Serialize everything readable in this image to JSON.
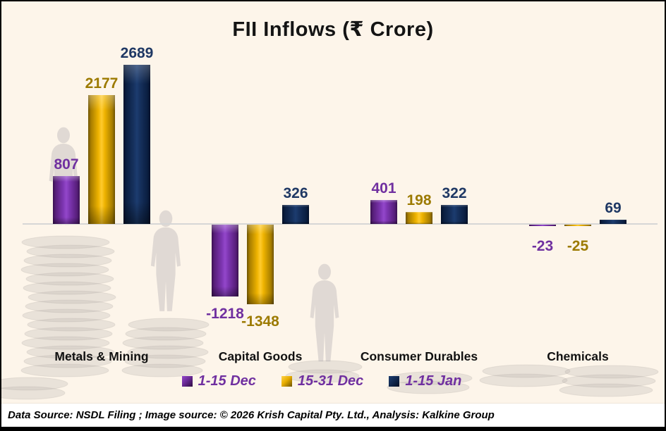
{
  "title": "FII Inflows (₹ Crore)",
  "chart_data": {
    "type": "bar",
    "title": "FII Inflows (₹ Crore)",
    "categories": [
      "Metals & Mining",
      "Capital Goods",
      "Consumer Durables",
      "Chemicals"
    ],
    "series": [
      {
        "name": "1-15 Dec",
        "values": [
          807,
          -1218,
          401,
          -23
        ],
        "bar_color": "#7030A0",
        "label_color": "#7030A0"
      },
      {
        "name": "15-31 Dec",
        "values": [
          2177,
          -1348,
          198,
          -25
        ],
        "bar_color": "#FFC000",
        "label_color": "#9C7A00"
      },
      {
        "name": "1-15 Jan",
        "values": [
          2689,
          326,
          322,
          69
        ],
        "bar_color": "#1F3864",
        "label_color": "#1F3864"
      }
    ],
    "xlabel": "",
    "ylabel": "",
    "ylim": [
      -1500,
      2800
    ],
    "grid": false,
    "legend_position": "bottom-center",
    "axis_line_color": "#D6D6D6",
    "background_color": "#FDF5EA",
    "legend_text_color": "#7030A0",
    "data_labels": true
  },
  "footer": {
    "text": "Data Source: NSDL Filing ; Image source: © 2026 Krish Capital Pty. Ltd., Analysis: Kalkine Group"
  }
}
